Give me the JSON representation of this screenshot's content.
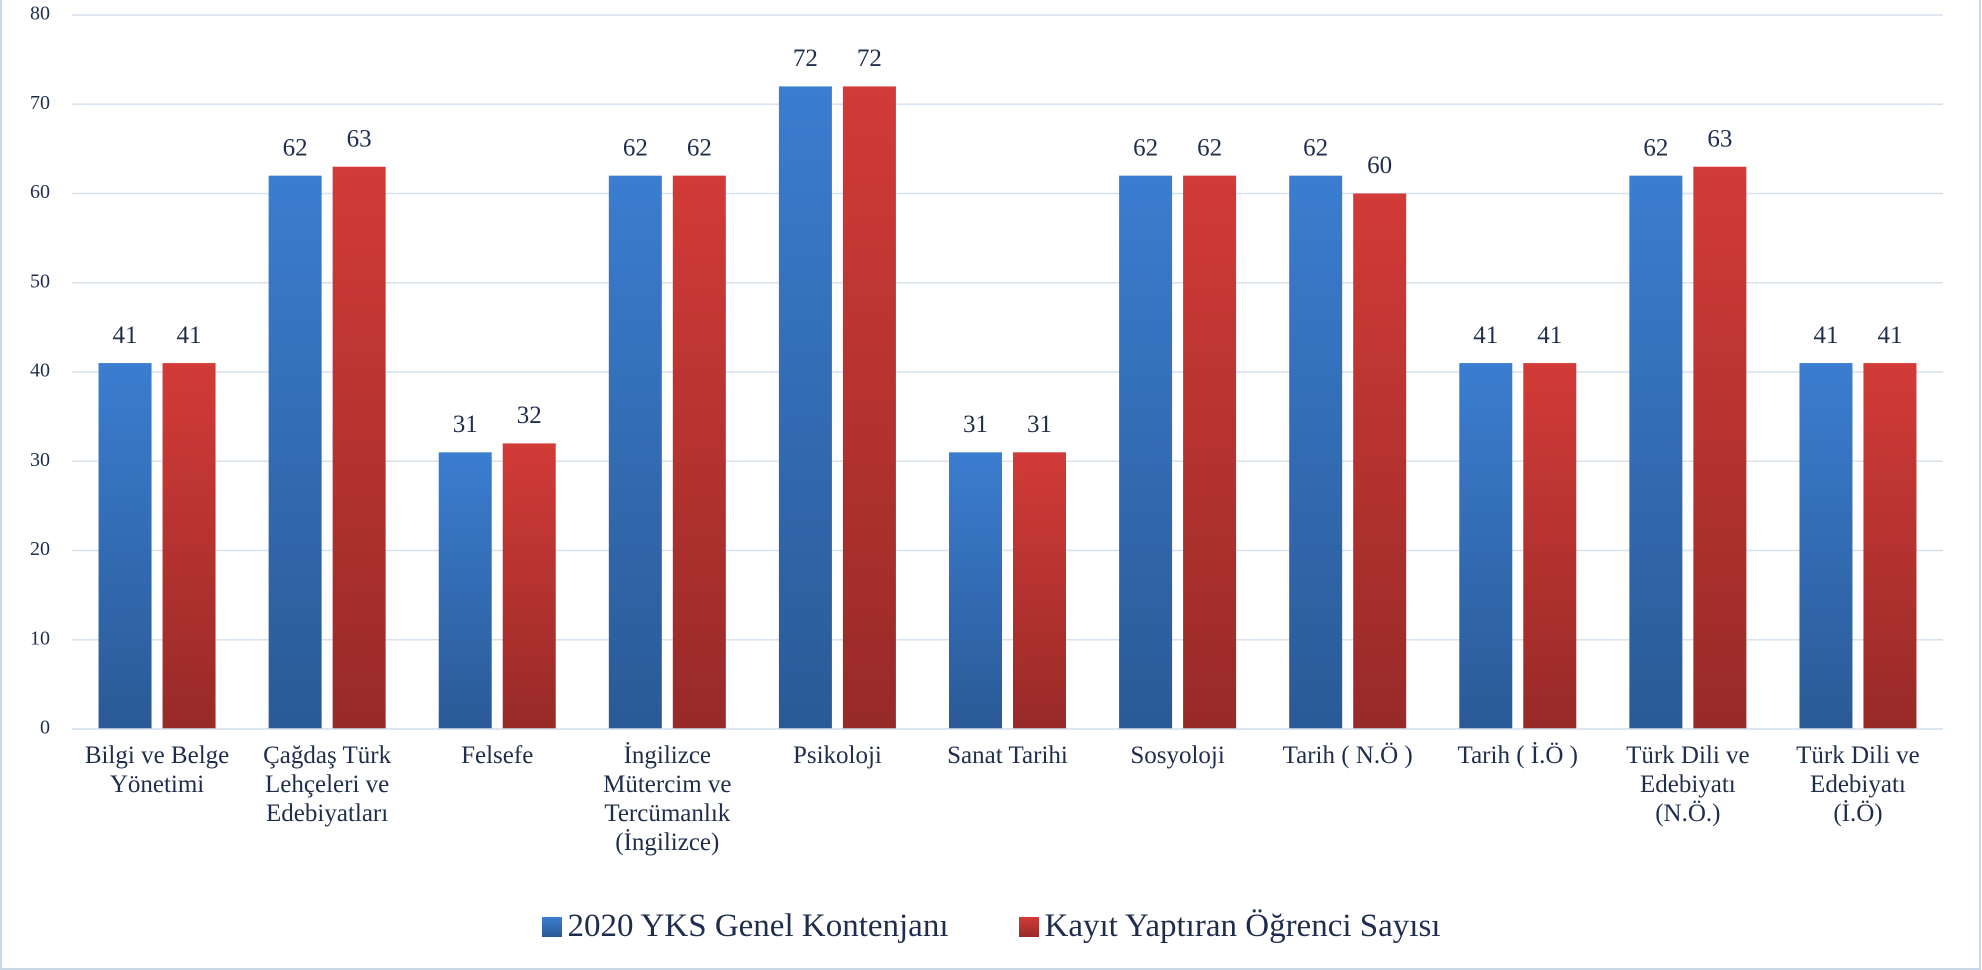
{
  "chart_data": {
    "type": "bar",
    "categories": [
      "Bilgi ve Belge\nYönetimi",
      "Çağdaş Türk\nLehçeleri ve\nEdebiyatları",
      "Felsefe",
      "İngilizce\nMütercim ve\nTercümanlık\n(İngilizce)",
      "Psikoloji",
      "Sanat Tarihi",
      "Sosyoloji",
      "Tarih ( N.Ö )",
      "Tarih ( İ.Ö )",
      "Türk Dili ve\nEdebiyatı\n(N.Ö.)",
      "Türk Dili ve\nEdebiyatı\n(İ.Ö)"
    ],
    "series": [
      {
        "name": "2020 YKS Genel Kontenjanı",
        "color": "#3b7dd0",
        "values": [
          41,
          62,
          31,
          62,
          72,
          31,
          62,
          62,
          41,
          62,
          41
        ]
      },
      {
        "name": "Kayıt Yaptıran Öğrenci Sayısı",
        "color": "#d23b37",
        "values": [
          41,
          63,
          32,
          62,
          72,
          31,
          62,
          60,
          41,
          63,
          41
        ]
      }
    ],
    "ylim": [
      0,
      80
    ],
    "yticks": [
      0,
      10,
      20,
      30,
      40,
      50,
      60,
      70,
      80
    ],
    "grid": true
  }
}
